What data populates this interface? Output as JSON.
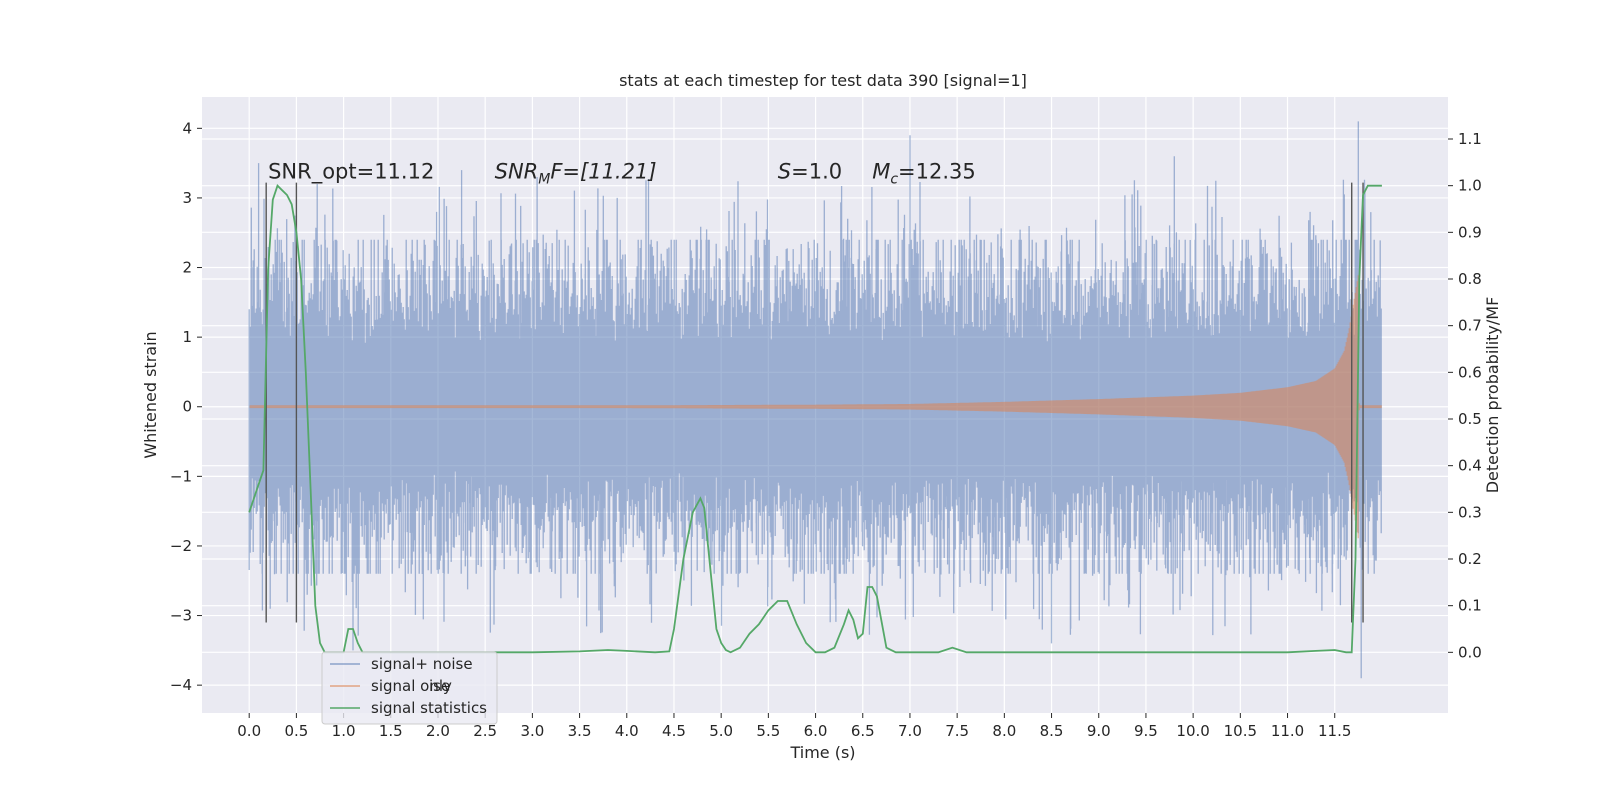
{
  "chart_data": {
    "type": "line",
    "title": "stats at each timestep for test data 390 [signal=1]",
    "xlabel": "Time (s)",
    "ylabel": "Whitened strain",
    "y2label": "Detection probability/MF",
    "xlim": [
      -0.5,
      12.7
    ],
    "ylim": [
      -4.4,
      4.45
    ],
    "y2lim": [
      -0.13,
      1.19
    ],
    "x_ticks": [
      0.0,
      0.5,
      1.0,
      1.5,
      2.0,
      2.5,
      3.0,
      3.5,
      4.0,
      4.5,
      5.0,
      5.5,
      6.0,
      6.5,
      7.0,
      7.5,
      8.0,
      8.5,
      9.0,
      9.5,
      10.0,
      10.5,
      11.0,
      11.5
    ],
    "x_tick_labels": [
      "0.0",
      "0.5",
      "1.0",
      "1.5",
      "2.0",
      "2.5",
      "3.0",
      "3.5",
      "4.0",
      "4.5",
      "5.0",
      "5.5",
      "6.0",
      "6.5",
      "7.0",
      "7.5",
      "8.0",
      "8.5",
      "9.0",
      "9.5",
      "10.0",
      "10.5",
      "11.0",
      "11.5"
    ],
    "y_ticks": [
      -4,
      -3,
      -2,
      -1,
      0,
      1,
      2,
      3,
      4
    ],
    "y_tick_labels": [
      "−4",
      "−3",
      "−2",
      "−1",
      "0",
      "1",
      "2",
      "3",
      "4"
    ],
    "y2_ticks": [
      0.0,
      0.1,
      0.2,
      0.3,
      0.4,
      0.5,
      0.6,
      0.7,
      0.8,
      0.9,
      1.0,
      1.1
    ],
    "y2_tick_labels": [
      "0.0",
      "0.1",
      "0.2",
      "0.3",
      "0.4",
      "0.5",
      "0.6",
      "0.7",
      "0.8",
      "0.9",
      "1.0",
      "1.1"
    ],
    "grid": true,
    "legend_position": "lower-left",
    "colors": {
      "background": "#eaeaf2",
      "grid": "#ffffff",
      "signal_noise": "#4c72b0",
      "signal_only": "#dd8452",
      "signal_statistics": "#55a868",
      "markers": "#555555"
    },
    "series": [
      {
        "name": "signal+ noise",
        "axis": "left",
        "style": "dense noisy strain, time 0.0–12.0 s, mostly within ±2 with spikes to about +4.1 and −3.9",
        "peak_points": {
          "x": [
            0.1,
            0.72,
            1.1,
            2.25,
            3.05,
            4.8,
            7.0,
            8.5,
            9.8,
            11.75,
            11.78
          ],
          "y": [
            3.5,
            3.2,
            -3.5,
            3.4,
            3.3,
            -1.9,
            3.9,
            -3.4,
            3.6,
            4.1,
            -3.9
          ]
        }
      },
      {
        "name": "signal only",
        "axis": "left",
        "style": "chirp, near 0 amplitude growing sharply toward merger",
        "envelope": {
          "x": [
            0.0,
            2.0,
            4.0,
            6.0,
            7.0,
            8.0,
            9.0,
            10.0,
            10.5,
            11.0,
            11.3,
            11.5,
            11.6,
            11.65,
            11.7,
            11.75,
            11.8,
            12.0
          ],
          "y": [
            0.02,
            0.02,
            0.02,
            0.03,
            0.04,
            0.07,
            0.11,
            0.16,
            0.2,
            0.28,
            0.37,
            0.55,
            0.8,
            1.1,
            1.5,
            1.9,
            0.05,
            0.02
          ]
        }
      },
      {
        "name": "signal statistics",
        "axis": "right",
        "x": [
          0.0,
          0.1,
          0.15,
          0.2,
          0.25,
          0.3,
          0.35,
          0.4,
          0.45,
          0.5,
          0.55,
          0.6,
          0.65,
          0.7,
          0.75,
          0.8,
          0.9,
          1.0,
          1.05,
          1.1,
          1.15,
          1.2,
          1.5,
          2.0,
          3.0,
          3.5,
          3.8,
          4.0,
          4.3,
          4.45,
          4.5,
          4.6,
          4.7,
          4.78,
          4.82,
          4.9,
          4.95,
          5.0,
          5.05,
          5.1,
          5.2,
          5.3,
          5.4,
          5.5,
          5.6,
          5.7,
          5.8,
          5.9,
          6.0,
          6.1,
          6.2,
          6.3,
          6.35,
          6.4,
          6.45,
          6.5,
          6.55,
          6.6,
          6.65,
          6.75,
          6.85,
          7.0,
          7.3,
          7.45,
          7.6,
          7.8,
          8.5,
          9.5,
          10.5,
          11.0,
          11.3,
          11.5,
          11.62,
          11.68,
          11.72,
          11.76,
          11.8,
          11.85,
          11.9,
          11.95,
          12.0
        ],
        "y": [
          0.3,
          0.36,
          0.39,
          0.82,
          0.97,
          1.0,
          0.99,
          0.98,
          0.96,
          0.9,
          0.8,
          0.6,
          0.35,
          0.1,
          0.02,
          0.0,
          0.0,
          0.0,
          0.05,
          0.05,
          0.02,
          0.0,
          0.0,
          0.0,
          0.0,
          0.002,
          0.005,
          0.003,
          0.0,
          0.002,
          0.05,
          0.2,
          0.3,
          0.33,
          0.31,
          0.15,
          0.05,
          0.02,
          0.005,
          0.0,
          0.01,
          0.04,
          0.06,
          0.09,
          0.11,
          0.11,
          0.06,
          0.02,
          0.0,
          0.0,
          0.01,
          0.06,
          0.09,
          0.07,
          0.03,
          0.04,
          0.14,
          0.14,
          0.12,
          0.01,
          0.0,
          0.0,
          0.0,
          0.01,
          0.0,
          0.0,
          0.0,
          0.0,
          0.0,
          0.0,
          0.003,
          0.005,
          0.0,
          0.0,
          0.2,
          0.8,
          0.98,
          1.0,
          1.0,
          1.0,
          1.0
        ]
      }
    ],
    "vertical_markers": {
      "x": [
        0.18,
        0.5,
        11.68,
        11.8
      ],
      "y_from": -3.1,
      "y_to": 3.22
    },
    "annotations": [
      {
        "id": "snr_opt",
        "text": "SNR_opt=11.12",
        "x": 0.2,
        "y": 3.22
      },
      {
        "id": "snr_mf",
        "parts": [
          "SNR",
          "M",
          "F=[11.21]"
        ],
        "x": 2.6,
        "y": 3.22
      },
      {
        "id": "stat_s",
        "parts": [
          "S",
          "=1.0"
        ],
        "x": 5.6,
        "y": 3.22
      },
      {
        "id": "chirp_mass",
        "parts": [
          "M",
          "c",
          "=12.35"
        ],
        "x": 6.6,
        "y": 3.22
      }
    ],
    "legend": [
      "signal+ noise",
      "signal only",
      "signal statistics"
    ],
    "legend_ghost_text": "ise"
  }
}
